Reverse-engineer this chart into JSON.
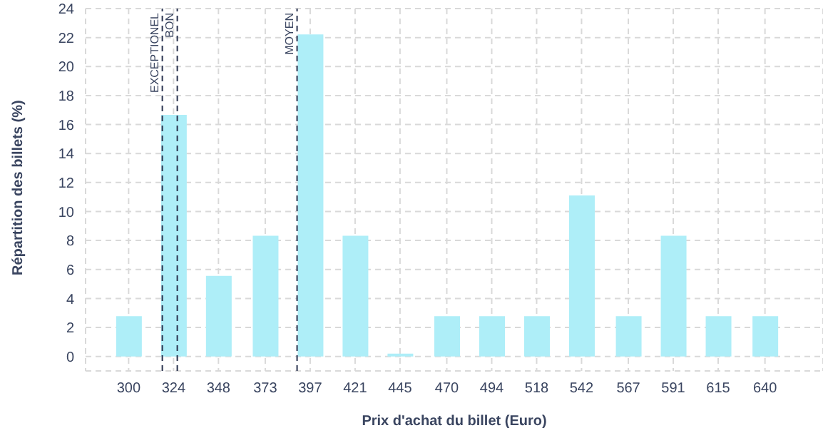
{
  "chart_data": {
    "type": "bar",
    "xlabel": "Prix d'achat du billet (Euro)",
    "ylabel": "Répartition des billets (%)",
    "x": [
      300,
      324,
      348,
      373,
      397,
      421,
      445,
      470,
      494,
      518,
      542,
      567,
      591,
      615,
      640
    ],
    "values": [
      2.78,
      16.67,
      5.56,
      8.33,
      22.22,
      8.33,
      0,
      2.78,
      2.78,
      2.78,
      11.11,
      2.78,
      8.33,
      2.78,
      2.78
    ],
    "color": "#aeeef8",
    "xlim": [
      277,
      671
    ],
    "xticks": [
      300,
      324,
      348,
      373,
      397,
      421,
      445,
      470,
      494,
      518,
      542,
      567,
      591,
      615,
      640
    ],
    "ylim": [
      -1,
      24
    ],
    "yticks": [
      0,
      2,
      4,
      6,
      8,
      10,
      12,
      14,
      16,
      18,
      20,
      22,
      24
    ],
    "grid": true,
    "legend": false,
    "ref_lines": [
      {
        "axis": "x",
        "value": 318,
        "label": "EXCEPTIONEL",
        "color": "#2b3450",
        "line_style": "dashed"
      },
      {
        "axis": "x",
        "value": 326,
        "label": "BON",
        "color": "#2b3450",
        "line_style": "dashed"
      },
      {
        "axis": "x",
        "value": 390,
        "label": "MOYEN",
        "color": "#2b3450",
        "line_style": "dashed"
      }
    ]
  }
}
